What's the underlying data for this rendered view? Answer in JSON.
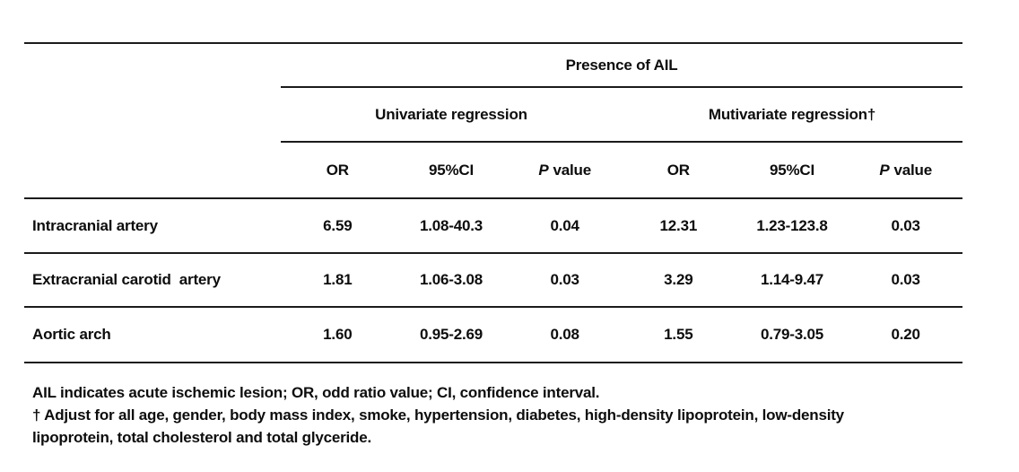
{
  "table": {
    "spanner": "Presence of AIL",
    "group_headers": [
      {
        "label": "Univariate regression"
      },
      {
        "label": "Mutivariate regression†"
      }
    ],
    "columns": {
      "or": "OR",
      "ci": "95%CI",
      "p_italic": "P",
      "p_rest": "value"
    },
    "rows": [
      {
        "label": "Intracranial artery",
        "values": [
          "6.59",
          "1.08-40.3",
          "0.04",
          "12.31",
          "1.23-123.8",
          "0.03"
        ]
      },
      {
        "label": "Extracranial carotid  artery",
        "values": [
          "1.81",
          "1.06-3.08",
          "0.03",
          "3.29",
          "1.14-9.47",
          "0.03"
        ]
      },
      {
        "label": "Aortic arch",
        "values": [
          "1.60",
          "0.95-2.69",
          "0.08",
          "1.55",
          "0.79-3.05",
          "0.20"
        ]
      }
    ]
  },
  "footnotes": {
    "line1": "AIL indicates acute ischemic lesion; OR, odd ratio value; CI, confidence interval.",
    "line2": "† Adjust for all age, gender, body mass index, smoke, hypertension, diabetes, high-density lipoprotein, low-density",
    "line3": "lipoprotein, total cholesterol and total glyceride."
  },
  "colors": {
    "background": "#ffffff",
    "text": "#0d0d0d",
    "rule": "#1b1b1b"
  }
}
